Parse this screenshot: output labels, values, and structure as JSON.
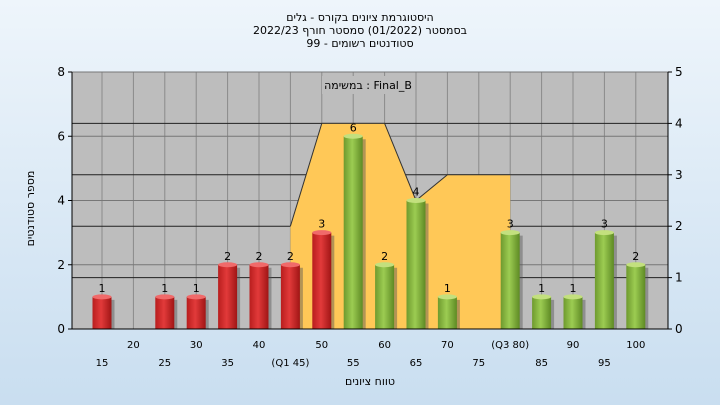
{
  "chart_data": {
    "type": "bar",
    "title_lines": [
      "היסטוגרמת ציונים בקורס - גלים",
      "בסמסטר  (01/2022)  סמסטר חורף 2022/23",
      "סטודנטים רשומים - 99"
    ],
    "annotation": "במשימה : Final_B",
    "xlabel": "טווח ציונים",
    "ylabel": "מספר סטודנטים",
    "ylim": [
      0,
      8
    ],
    "y_ticks": [
      0,
      2,
      4,
      6,
      8
    ],
    "y2lim": [
      0,
      5
    ],
    "y2_ticks": [
      0,
      1,
      2,
      3,
      4,
      5
    ],
    "categories": [
      "15",
      "20",
      "25",
      "30",
      "35",
      "40",
      "(Q1 45)",
      "50",
      "55",
      "60",
      "65",
      "70",
      "75",
      "(Q3 80)",
      "85",
      "90",
      "95",
      "100"
    ],
    "values": [
      1,
      0,
      1,
      1,
      2,
      2,
      2,
      3,
      6,
      2,
      4,
      1,
      0,
      3,
      1,
      1,
      3,
      2
    ],
    "bar_colors": [
      "red",
      "red",
      "red",
      "red",
      "red",
      "red",
      "red",
      "red",
      "green",
      "green",
      "green",
      "green",
      "green",
      "green",
      "green",
      "green",
      "green",
      "green"
    ],
    "band": {
      "color": "#ffc857",
      "y_values": [
        null,
        null,
        null,
        null,
        null,
        null,
        2,
        4,
        4,
        4,
        2.5,
        3,
        3,
        3,
        null,
        null,
        null,
        null
      ]
    },
    "grid": true,
    "colors": {
      "red_bar": "#e23a3a",
      "green_bar": "#9ccc52",
      "band": "#ffc857",
      "plot_bg": "#bdbdbd"
    }
  }
}
